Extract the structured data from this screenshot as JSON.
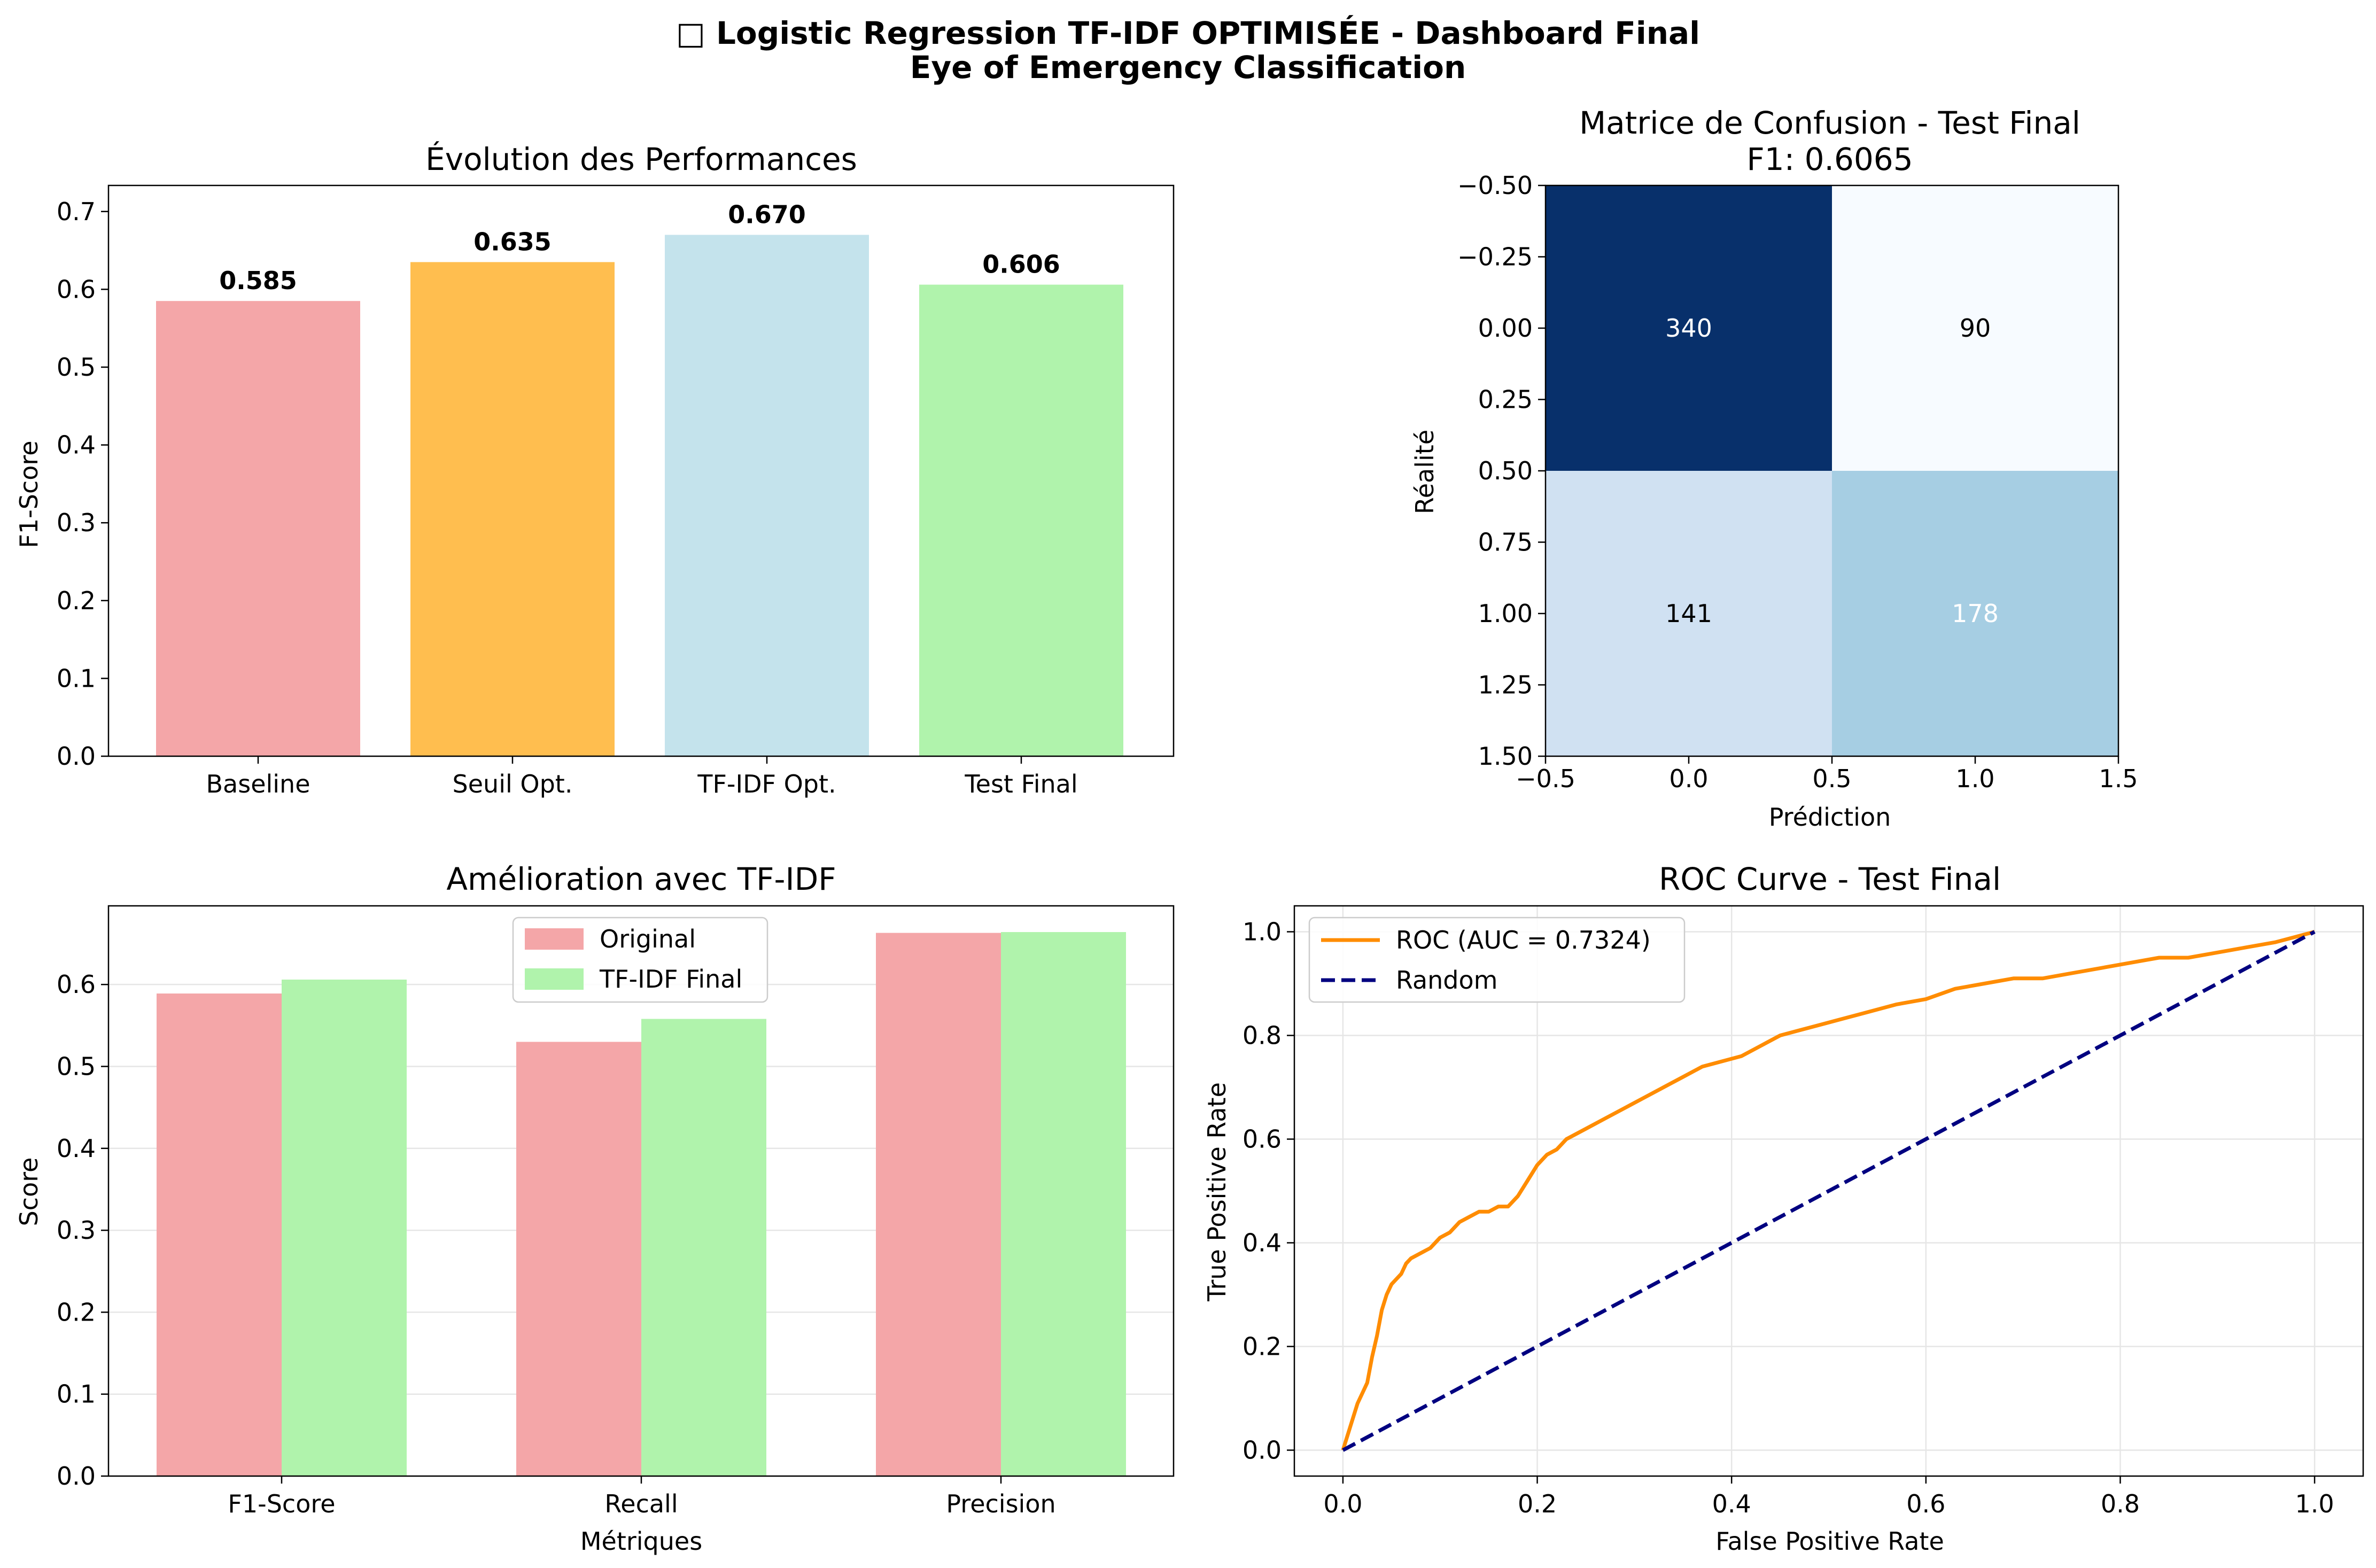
{
  "figure": {
    "title_line1": "□ Logistic Regression TF-IDF OPTIMISÉE - Dashboard Final",
    "title_line2": "Eye of Emergency Classification"
  },
  "colors": {
    "baseline": "#f4a6a8",
    "seuil": "#ffbe4f",
    "tfidf_opt": "#c4e3ec",
    "test_final": "#b0f3ac",
    "roc": "#ff8c00",
    "random": "#000080",
    "cm_high": "#08306b",
    "cm_low": "#f7fbff",
    "cm_mid_low": "#d0e1f2",
    "cm_mid_high": "#a6cee3",
    "grid": "#e6e6e6"
  },
  "chart_data": [
    {
      "type": "bar",
      "title": "Évolution des Performances",
      "xlabel": "",
      "ylabel": "F1-Score",
      "categories": [
        "Baseline",
        "Seuil Opt.",
        "TF-IDF Opt.",
        "Test Final"
      ],
      "values": [
        0.585,
        0.635,
        0.67,
        0.606
      ],
      "value_labels": [
        "0.585",
        "0.635",
        "0.670",
        "0.606"
      ],
      "bar_colors": [
        "#f4a6a8",
        "#ffbe4f",
        "#c4e3ec",
        "#b0f3ac"
      ],
      "ylim": [
        0,
        0.7335
      ],
      "yticks": [
        0.0,
        0.1,
        0.2,
        0.3,
        0.4,
        0.5,
        0.6,
        0.7
      ],
      "ytick_labels": [
        "0.0",
        "0.1",
        "0.2",
        "0.3",
        "0.4",
        "0.5",
        "0.6",
        "0.7"
      ],
      "grid": false
    },
    {
      "type": "heatmap",
      "title": "Matrice de Confusion - Test Final",
      "subtitle": "F1: 0.6065",
      "xlabel": "Prédiction",
      "ylabel": "Réalité",
      "matrix": [
        [
          340,
          90
        ],
        [
          141,
          178
        ]
      ],
      "xlim": [
        -0.5,
        1.5
      ],
      "ylim": [
        1.5,
        -0.5
      ],
      "xticks": [
        -0.5,
        0.0,
        0.5,
        1.0,
        1.5
      ],
      "xtick_labels": [
        "−0.5",
        "0.0",
        "0.5",
        "1.0",
        "1.5"
      ],
      "yticks": [
        -0.5,
        -0.25,
        0.0,
        0.25,
        0.5,
        0.75,
        1.0,
        1.25,
        1.5
      ],
      "ytick_labels": [
        "−0.50",
        "−0.25",
        "0.00",
        "0.25",
        "0.50",
        "0.75",
        "1.00",
        "1.25",
        "1.50"
      ],
      "colormap": "Blues",
      "grid": false
    },
    {
      "type": "bar",
      "title": "Amélioration avec TF-IDF",
      "xlabel": "Métriques",
      "ylabel": "Score",
      "categories": [
        "F1-Score",
        "Recall",
        "Precision"
      ],
      "series": [
        {
          "name": "Original",
          "values": [
            0.589,
            0.53,
            0.663
          ],
          "color": "#f4a6a8"
        },
        {
          "name": "TF-IDF Final",
          "values": [
            0.606,
            0.558,
            0.664
          ],
          "color": "#b0f3ac"
        }
      ],
      "ylim": [
        0,
        0.696
      ],
      "yticks": [
        0.0,
        0.1,
        0.2,
        0.3,
        0.4,
        0.5,
        0.6
      ],
      "ytick_labels": [
        "0.0",
        "0.1",
        "0.2",
        "0.3",
        "0.4",
        "0.5",
        "0.6"
      ],
      "legend": "top-center",
      "grid": true
    },
    {
      "type": "line",
      "title": "ROC Curve - Test Final",
      "xlabel": "False Positive Rate",
      "ylabel": "True Positive Rate",
      "xlim": [
        -0.05,
        1.05
      ],
      "ylim": [
        -0.05,
        1.05
      ],
      "xticks": [
        0.0,
        0.2,
        0.4,
        0.6,
        0.8,
        1.0
      ],
      "xtick_labels": [
        "0.0",
        "0.2",
        "0.4",
        "0.6",
        "0.8",
        "1.0"
      ],
      "yticks": [
        0.0,
        0.2,
        0.4,
        0.6,
        0.8,
        1.0
      ],
      "ytick_labels": [
        "0.0",
        "0.2",
        "0.4",
        "0.6",
        "0.8",
        "1.0"
      ],
      "legend": "top-left",
      "grid": true,
      "series": [
        {
          "name": "ROC (AUC = 0.7324)",
          "color": "#ff8c00",
          "style": "solid",
          "x": [
            0.0,
            0.005,
            0.01,
            0.015,
            0.02,
            0.025,
            0.03,
            0.035,
            0.04,
            0.045,
            0.05,
            0.055,
            0.06,
            0.065,
            0.07,
            0.08,
            0.09,
            0.1,
            0.11,
            0.12,
            0.13,
            0.14,
            0.15,
            0.16,
            0.17,
            0.18,
            0.19,
            0.2,
            0.21,
            0.22,
            0.23,
            0.25,
            0.27,
            0.29,
            0.31,
            0.33,
            0.35,
            0.37,
            0.39,
            0.41,
            0.43,
            0.45,
            0.47,
            0.49,
            0.51,
            0.53,
            0.55,
            0.57,
            0.6,
            0.63,
            0.66,
            0.69,
            0.72,
            0.75,
            0.78,
            0.81,
            0.84,
            0.87,
            0.9,
            0.93,
            0.96,
            0.98,
            1.0
          ],
          "y": [
            0.0,
            0.03,
            0.06,
            0.09,
            0.11,
            0.13,
            0.18,
            0.22,
            0.27,
            0.3,
            0.32,
            0.33,
            0.34,
            0.36,
            0.37,
            0.38,
            0.39,
            0.41,
            0.42,
            0.44,
            0.45,
            0.46,
            0.46,
            0.47,
            0.47,
            0.49,
            0.52,
            0.55,
            0.57,
            0.58,
            0.6,
            0.62,
            0.64,
            0.66,
            0.68,
            0.7,
            0.72,
            0.74,
            0.75,
            0.76,
            0.78,
            0.8,
            0.81,
            0.82,
            0.83,
            0.84,
            0.85,
            0.86,
            0.87,
            0.89,
            0.9,
            0.91,
            0.91,
            0.92,
            0.93,
            0.94,
            0.95,
            0.95,
            0.96,
            0.97,
            0.98,
            0.99,
            1.0
          ]
        },
        {
          "name": "Random",
          "color": "#000080",
          "style": "dashed",
          "x": [
            0.0,
            1.0
          ],
          "y": [
            0.0,
            1.0
          ]
        }
      ]
    }
  ]
}
